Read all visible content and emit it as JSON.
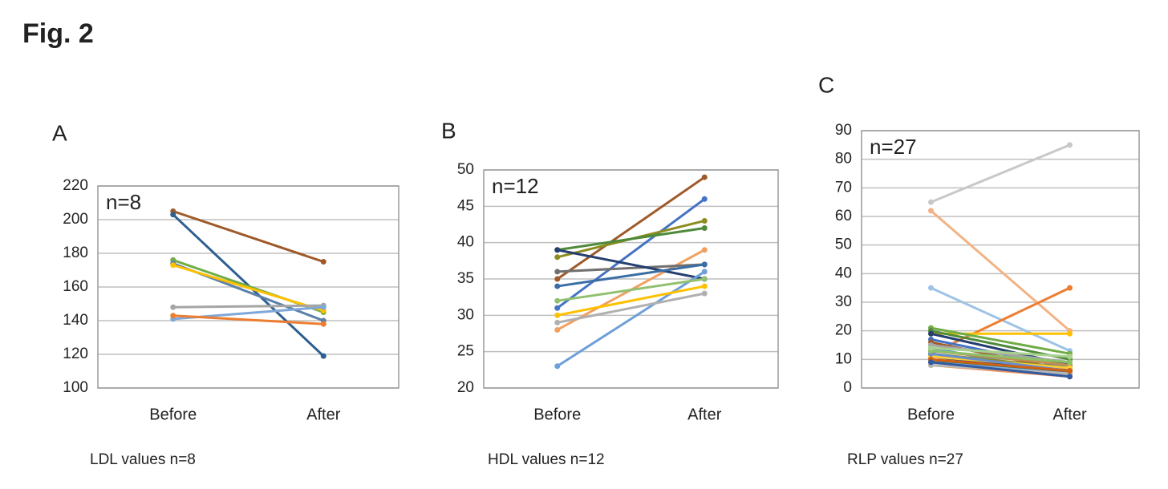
{
  "figure_title": "Fig. 2",
  "chart_data": [
    {
      "type": "line",
      "panel": "A",
      "annotation": "n=8",
      "caption": "LDL values n=8",
      "categories": [
        "Before",
        "After"
      ],
      "ylim": [
        100,
        220
      ],
      "yticks": [
        100,
        120,
        140,
        160,
        180,
        200,
        220
      ],
      "grid": true,
      "series": [
        {
          "color": "#9e5a2a",
          "values": [
            205,
            175
          ]
        },
        {
          "color": "#2e5f8f",
          "values": [
            203,
            119
          ]
        },
        {
          "color": "#70ad47",
          "values": [
            176,
            145
          ]
        },
        {
          "color": "#5b7fa8",
          "values": [
            174,
            140
          ]
        },
        {
          "color": "#ffc000",
          "values": [
            173,
            146
          ]
        },
        {
          "color": "#a5a5a5",
          "values": [
            148,
            149
          ]
        },
        {
          "color": "#7fa7d8",
          "values": [
            141,
            148
          ]
        },
        {
          "color": "#ed7d31",
          "values": [
            143,
            138
          ]
        }
      ]
    },
    {
      "type": "line",
      "panel": "B",
      "annotation": "n=12",
      "caption": "HDL values n=12",
      "categories": [
        "Before",
        "After"
      ],
      "ylim": [
        20,
        50
      ],
      "yticks": [
        20,
        25,
        30,
        35,
        40,
        45,
        50
      ],
      "grid": true,
      "series": [
        {
          "color": "#9e5a2a",
          "values": [
            35,
            49
          ]
        },
        {
          "color": "#4472c4",
          "values": [
            31,
            46
          ]
        },
        {
          "color": "#8c8c20",
          "values": [
            38,
            43
          ]
        },
        {
          "color": "#4e8a3a",
          "values": [
            39,
            42
          ]
        },
        {
          "color": "#f0a060",
          "values": [
            28,
            39
          ]
        },
        {
          "color": "#707070",
          "values": [
            36,
            37
          ]
        },
        {
          "color": "#243f70",
          "values": [
            39,
            35
          ]
        },
        {
          "color": "#3a6ea5",
          "values": [
            34,
            37
          ]
        },
        {
          "color": "#6f9fd8",
          "values": [
            23,
            36
          ]
        },
        {
          "color": "#92c070",
          "values": [
            32,
            35
          ]
        },
        {
          "color": "#ffc000",
          "values": [
            30,
            34
          ]
        },
        {
          "color": "#b0b0b0",
          "values": [
            29,
            33
          ]
        }
      ]
    },
    {
      "type": "line",
      "panel": "C",
      "annotation": "n=27",
      "caption": "RLP values n=27",
      "categories": [
        "Before",
        "After"
      ],
      "ylim": [
        0,
        90
      ],
      "yticks": [
        0,
        10,
        20,
        30,
        40,
        50,
        60,
        70,
        80,
        90
      ],
      "grid": true,
      "series": [
        {
          "color": "#c8c8c8",
          "values": [
            65,
            85
          ]
        },
        {
          "color": "#f4b183",
          "values": [
            62,
            20
          ]
        },
        {
          "color": "#9dc3e6",
          "values": [
            35,
            13
          ]
        },
        {
          "color": "#ed7d31",
          "values": [
            12,
            35
          ]
        },
        {
          "color": "#ffc000",
          "values": [
            19,
            19
          ]
        },
        {
          "color": "#70ad47",
          "values": [
            21,
            12
          ]
        },
        {
          "color": "#4e8a3a",
          "values": [
            20,
            10
          ]
        },
        {
          "color": "#243f70",
          "values": [
            19,
            8
          ]
        },
        {
          "color": "#4472c4",
          "values": [
            17,
            7
          ]
        },
        {
          "color": "#9e5a2a",
          "values": [
            16,
            6
          ]
        },
        {
          "color": "#a5a5a5",
          "values": [
            15,
            9
          ]
        },
        {
          "color": "#5b9bd5",
          "values": [
            14,
            5
          ]
        },
        {
          "color": "#c09050",
          "values": [
            13,
            8
          ]
        },
        {
          "color": "#8c8c20",
          "values": [
            12,
            7
          ]
        },
        {
          "color": "#264478",
          "values": [
            11,
            6
          ]
        },
        {
          "color": "#636363",
          "values": [
            10,
            5
          ]
        },
        {
          "color": "#997300",
          "values": [
            10,
            4
          ]
        },
        {
          "color": "#43682b",
          "values": [
            9,
            6
          ]
        },
        {
          "color": "#7cafdd",
          "values": [
            9,
            5
          ]
        },
        {
          "color": "#f1975a",
          "values": [
            8,
            4
          ]
        },
        {
          "color": "#b7b7b7",
          "values": [
            8,
            5
          ]
        },
        {
          "color": "#ffcd33",
          "values": [
            11,
            7
          ]
        },
        {
          "color": "#698ed0",
          "values": [
            12,
            6
          ]
        },
        {
          "color": "#8cc168",
          "values": [
            13,
            9
          ]
        },
        {
          "color": "#d26012",
          "values": [
            10,
            6
          ]
        },
        {
          "color": "#335aa1",
          "values": [
            9,
            4
          ]
        },
        {
          "color": "#a9d18e",
          "values": [
            14,
            11
          ]
        }
      ]
    }
  ]
}
